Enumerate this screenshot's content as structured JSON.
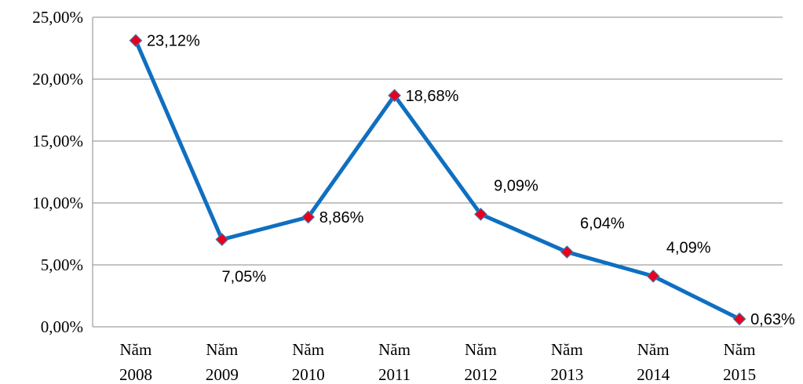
{
  "chart_data": {
    "type": "line",
    "categories": [
      [
        "Năm",
        "2008"
      ],
      [
        "Năm",
        "2009"
      ],
      [
        "Năm",
        "2010"
      ],
      [
        "Năm",
        "2011"
      ],
      [
        "Năm",
        "2012"
      ],
      [
        "Năm",
        "2013"
      ],
      [
        "Năm",
        "2014"
      ],
      [
        "Năm",
        "2015"
      ]
    ],
    "values": [
      23.12,
      7.05,
      8.86,
      18.68,
      9.09,
      6.04,
      4.09,
      0.63
    ],
    "data_labels": [
      "23,12%",
      "7,05%",
      "8,86%",
      "18,68%",
      "9,09%",
      "6,04%",
      "4,09%",
      "0,63%"
    ],
    "label_placement": [
      "right",
      "below",
      "right",
      "right",
      "above",
      "above",
      "above",
      "right"
    ],
    "y_ticks": [
      0,
      5,
      10,
      15,
      20,
      25
    ],
    "y_tick_labels": [
      "0,00%",
      "5,00%",
      "10,00%",
      "15,00%",
      "20,00%",
      "25,00%"
    ],
    "ylim": [
      0,
      25
    ],
    "grid": true,
    "legend": "none",
    "title": "",
    "xlabel": "",
    "ylabel": "",
    "colors": {
      "line": "#0f6fc0",
      "marker_fill": "#e8001c",
      "marker_edge": "#4a6fa8"
    }
  }
}
